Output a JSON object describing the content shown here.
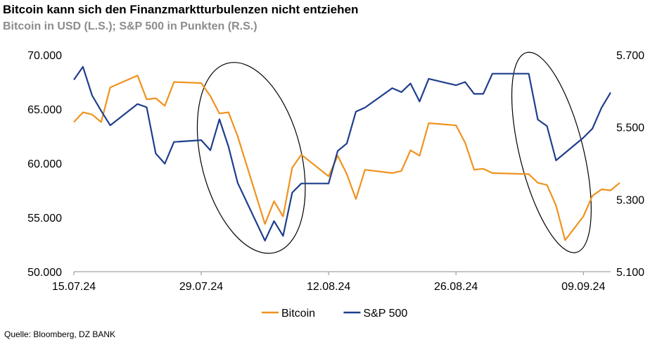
{
  "chart_data": {
    "type": "line",
    "title": "Bitcoin kann sich den Finanzmarktturbulenzen nicht entziehen",
    "subtitle": "Bitcoin in USD (L.S.); S&P 500 in Punkten (R.S.)",
    "source": "Quelle: Bloomberg, DZ BANK",
    "legend_position": "bottom",
    "grid": false,
    "x_ticks": [
      "15.07.24",
      "29.07.24",
      "12.08.24",
      "26.08.24",
      "09.09.24"
    ],
    "x_range": [
      "2024-07-15",
      "2024-09-12"
    ],
    "y_left": {
      "range": [
        50000,
        70000
      ],
      "ticks": [
        "50.000",
        "55.000",
        "60.000",
        "65.000",
        "70.000"
      ]
    },
    "y_right": {
      "range": [
        5100,
        5700
      ],
      "ticks": [
        "5.100",
        "5.300",
        "5.500",
        "5.700"
      ]
    },
    "series": [
      {
        "name": "Bitcoin",
        "axis": "left",
        "color": "#f0921e",
        "points": [
          [
            "2024-07-15",
            63800
          ],
          [
            "2024-07-16",
            64700
          ],
          [
            "2024-07-17",
            64500
          ],
          [
            "2024-07-18",
            63800
          ],
          [
            "2024-07-19",
            67000
          ],
          [
            "2024-07-22",
            68100
          ],
          [
            "2024-07-23",
            65900
          ],
          [
            "2024-07-24",
            66000
          ],
          [
            "2024-07-25",
            65300
          ],
          [
            "2024-07-26",
            67500
          ],
          [
            "2024-07-29",
            67400
          ],
          [
            "2024-07-30",
            66200
          ],
          [
            "2024-07-31",
            64600
          ],
          [
            "2024-08-01",
            64700
          ],
          [
            "2024-08-02",
            62500
          ],
          [
            "2024-08-05",
            54400
          ],
          [
            "2024-08-06",
            56500
          ],
          [
            "2024-08-07",
            55100
          ],
          [
            "2024-08-08",
            59600
          ],
          [
            "2024-08-09",
            60800
          ],
          [
            "2024-08-12",
            58800
          ],
          [
            "2024-08-13",
            60700
          ],
          [
            "2024-08-14",
            59000
          ],
          [
            "2024-08-15",
            56700
          ],
          [
            "2024-08-16",
            59400
          ],
          [
            "2024-08-19",
            59100
          ],
          [
            "2024-08-20",
            59300
          ],
          [
            "2024-08-21",
            61200
          ],
          [
            "2024-08-22",
            60700
          ],
          [
            "2024-08-23",
            63700
          ],
          [
            "2024-08-26",
            63500
          ],
          [
            "2024-08-27",
            61900
          ],
          [
            "2024-08-28",
            59400
          ],
          [
            "2024-08-29",
            59500
          ],
          [
            "2024-08-30",
            59100
          ],
          [
            "2024-09-03",
            59000
          ],
          [
            "2024-09-04",
            58200
          ],
          [
            "2024-09-05",
            58000
          ],
          [
            "2024-09-06",
            56100
          ],
          [
            "2024-09-07",
            52900
          ],
          [
            "2024-09-09",
            55100
          ],
          [
            "2024-09-10",
            57000
          ],
          [
            "2024-09-11",
            57600
          ],
          [
            "2024-09-12",
            57500
          ],
          [
            "2024-09-13",
            58200
          ]
        ]
      },
      {
        "name": "S&P 500",
        "axis": "right",
        "color": "#1f3e8c",
        "points": [
          [
            "2024-07-15",
            5631
          ],
          [
            "2024-07-16",
            5667
          ],
          [
            "2024-07-17",
            5588
          ],
          [
            "2024-07-18",
            5545
          ],
          [
            "2024-07-19",
            5505
          ],
          [
            "2024-07-22",
            5564
          ],
          [
            "2024-07-23",
            5555
          ],
          [
            "2024-07-24",
            5427
          ],
          [
            "2024-07-25",
            5399
          ],
          [
            "2024-07-26",
            5459
          ],
          [
            "2024-07-29",
            5464
          ],
          [
            "2024-07-30",
            5436
          ],
          [
            "2024-07-31",
            5522
          ],
          [
            "2024-08-01",
            5446
          ],
          [
            "2024-08-02",
            5346
          ],
          [
            "2024-08-05",
            5186
          ],
          [
            "2024-08-06",
            5240
          ],
          [
            "2024-08-07",
            5199
          ],
          [
            "2024-08-08",
            5319
          ],
          [
            "2024-08-09",
            5344
          ],
          [
            "2024-08-12",
            5344
          ],
          [
            "2024-08-13",
            5434
          ],
          [
            "2024-08-14",
            5455
          ],
          [
            "2024-08-15",
            5543
          ],
          [
            "2024-08-16",
            5554
          ],
          [
            "2024-08-19",
            5608
          ],
          [
            "2024-08-20",
            5597
          ],
          [
            "2024-08-21",
            5621
          ],
          [
            "2024-08-22",
            5571
          ],
          [
            "2024-08-23",
            5634
          ],
          [
            "2024-08-26",
            5616
          ],
          [
            "2024-08-27",
            5625
          ],
          [
            "2024-08-28",
            5592
          ],
          [
            "2024-08-29",
            5592
          ],
          [
            "2024-08-30",
            5648
          ],
          [
            "2024-09-03",
            5648
          ],
          [
            "2024-09-04",
            5521
          ],
          [
            "2024-09-05",
            5503
          ],
          [
            "2024-09-06",
            5408
          ],
          [
            "2024-09-09",
            5471
          ],
          [
            "2024-09-10",
            5496
          ],
          [
            "2024-09-11",
            5554
          ],
          [
            "2024-09-12",
            5596
          ]
        ]
      }
    ],
    "annotations": [
      {
        "type": "ellipse",
        "from": "2024-07-29",
        "to": "2024-08-09",
        "y_range_left": [
          51500,
          69500
        ]
      },
      {
        "type": "ellipse",
        "from": "2024-09-02",
        "to": "2024-09-09",
        "y_range_left": [
          51500,
          70500
        ]
      }
    ]
  }
}
